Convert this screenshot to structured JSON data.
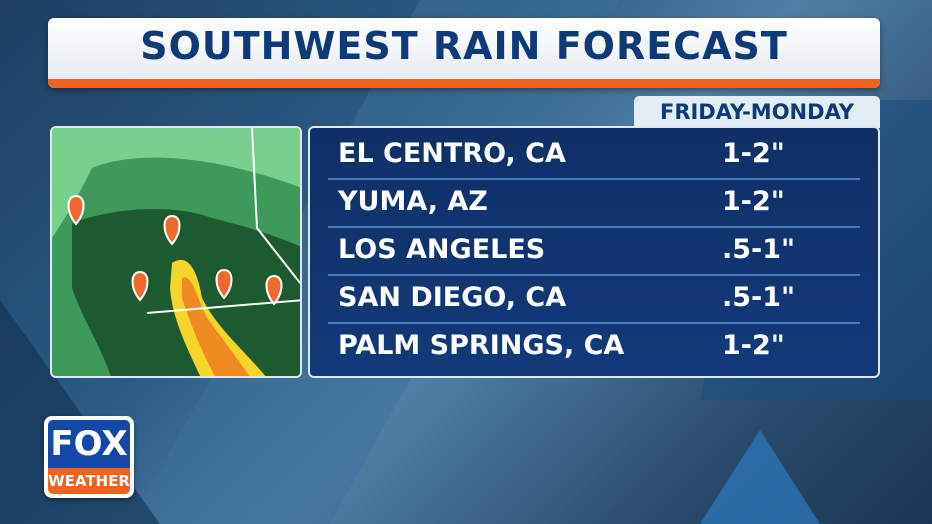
{
  "header": {
    "title": "SOUTHWEST RAIN FORECAST",
    "subtitle": "FRIDAY-MONDAY"
  },
  "table": {
    "rows": [
      [
        "EL CENTRO, CA",
        "1-2\""
      ],
      [
        "YUMA, AZ",
        "1-2\""
      ],
      [
        "LOS ANGELES",
        ".5-1\""
      ],
      [
        "SAN DIEGO, CA",
        ".5-1\""
      ],
      [
        "PALM SPRINGS, CA",
        "1-2\""
      ]
    ]
  },
  "logo": {
    "top": "FOX",
    "bottom": "WEATHER"
  }
}
